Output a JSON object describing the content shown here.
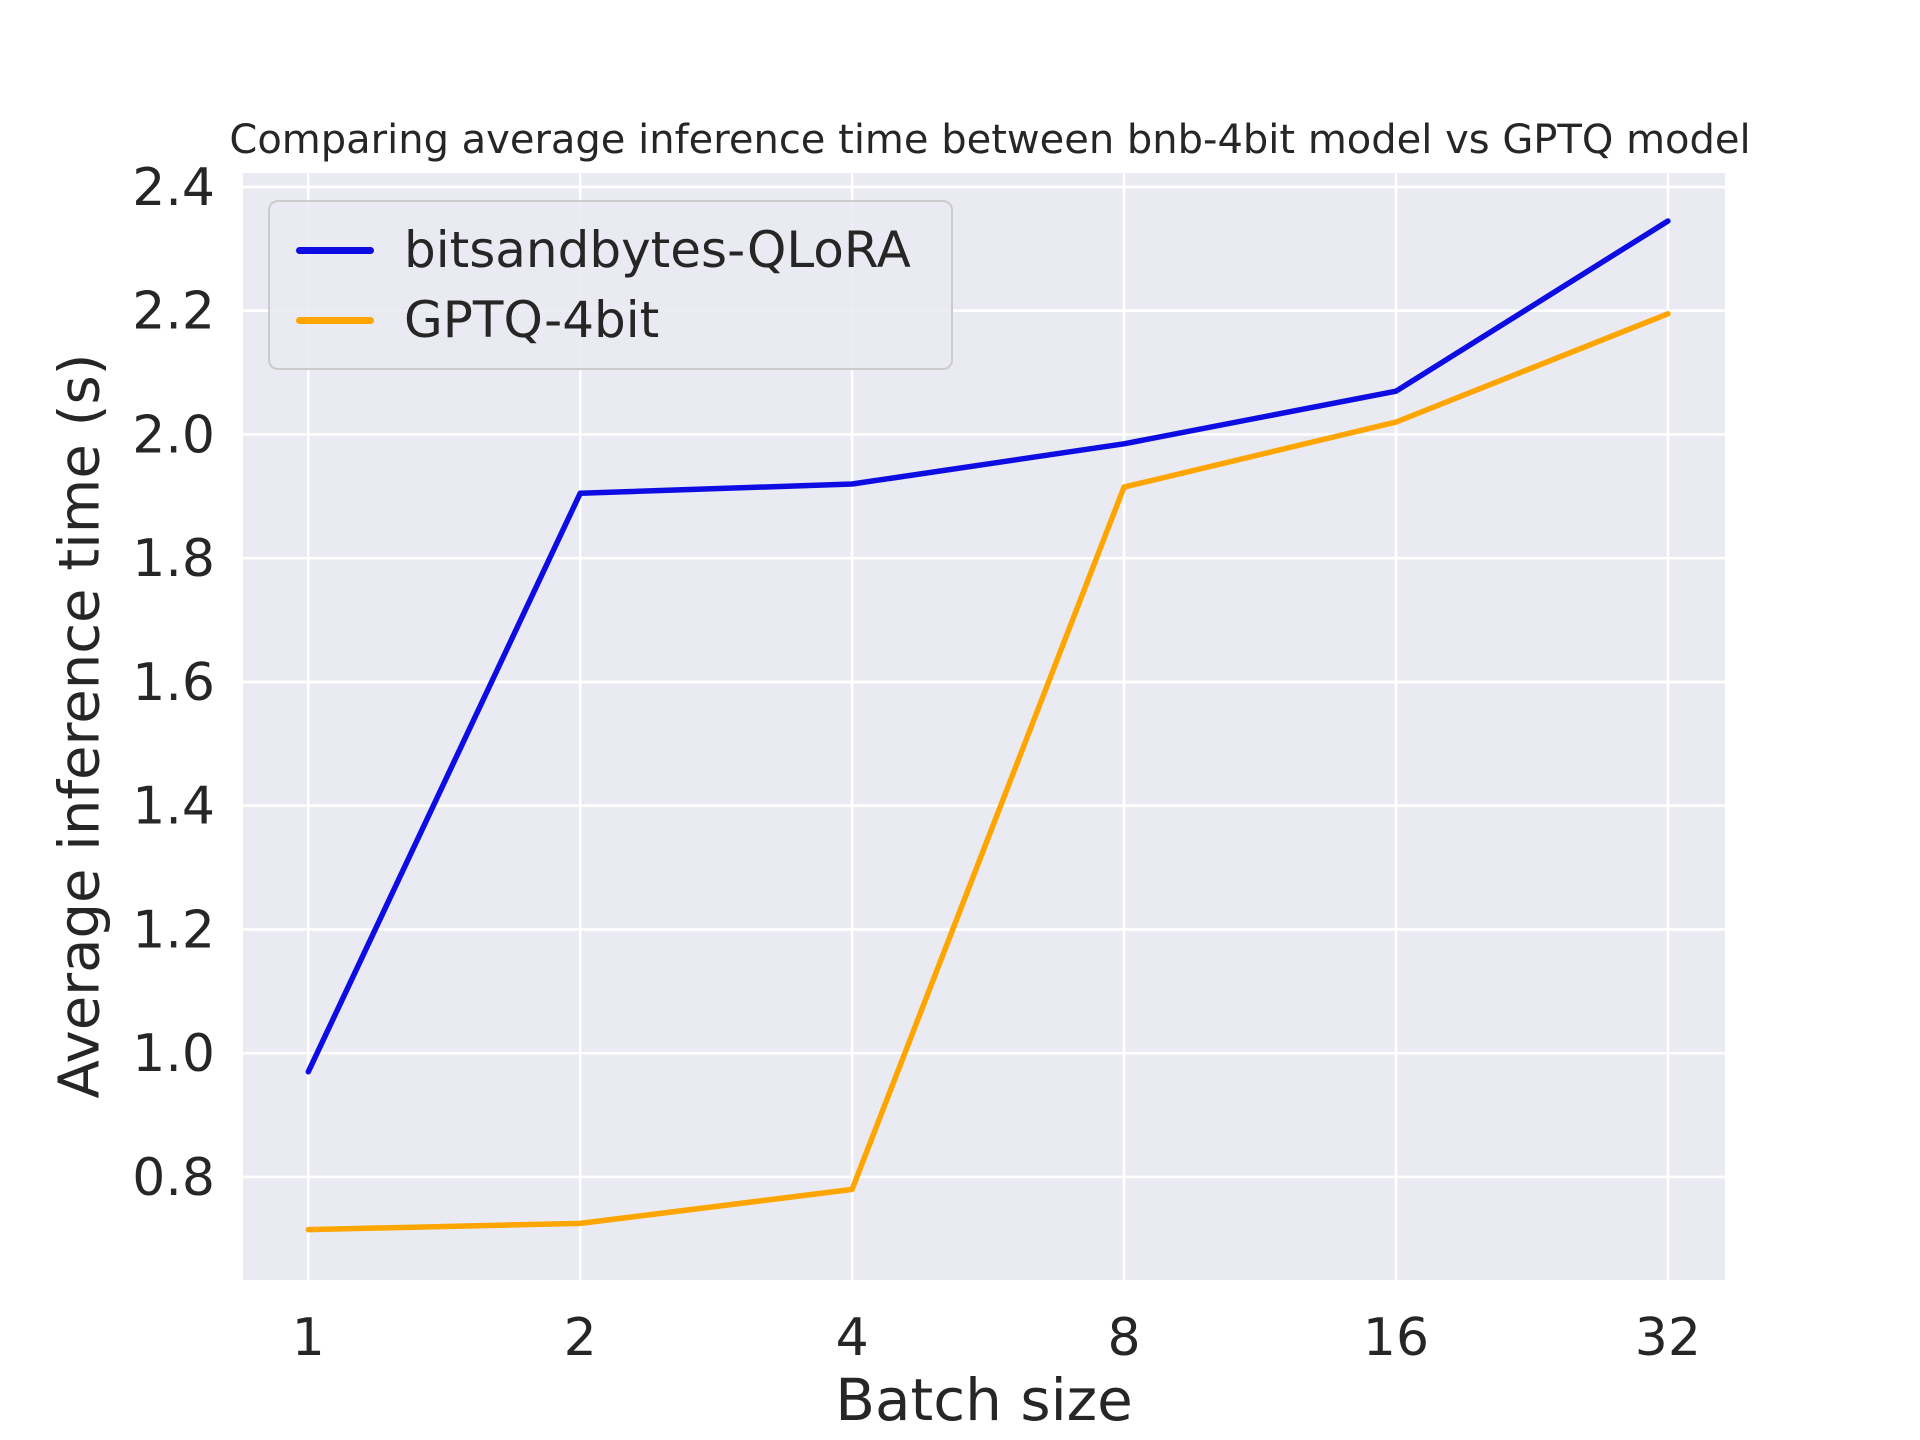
{
  "figure": {
    "title": "Comparing average inference time between bnb-4bit model vs GPTQ model",
    "xlabel": "Batch size",
    "ylabel": "Average inference time (s)"
  },
  "legend": {
    "items": [
      {
        "label": "bitsandbytes-QLoRA",
        "color": "#0d0de3"
      },
      {
        "label": "GPTQ-4bit",
        "color": "#ffa500"
      }
    ]
  },
  "chart_data": {
    "type": "line",
    "title": "Comparing average inference time between bnb-4bit model vs GPTQ model",
    "xlabel": "Batch size",
    "ylabel": "Average inference time (s)",
    "categories": [
      "1",
      "2",
      "4",
      "8",
      "16",
      "32"
    ],
    "series": [
      {
        "name": "bitsandbytes-QLoRA",
        "color": "#0d0de3",
        "values": [
          0.97,
          1.905,
          1.92,
          1.985,
          2.07,
          2.345
        ]
      },
      {
        "name": "GPTQ-4bit",
        "color": "#ffa500",
        "values": [
          0.715,
          0.725,
          0.78,
          1.915,
          2.02,
          2.195
        ]
      }
    ],
    "yticks": [
      0.8,
      1.0,
      1.2,
      1.4,
      1.6,
      1.8,
      2.0,
      2.2,
      2.4
    ],
    "ylim": [
      0.6335,
      2.4226
    ],
    "xlim_index": [
      -0.24,
      5.21
    ],
    "grid": true,
    "legend_position": "upper left",
    "plot_background": "#eaeaf2",
    "grid_color": "#ffffff",
    "text_color": "#262626"
  }
}
